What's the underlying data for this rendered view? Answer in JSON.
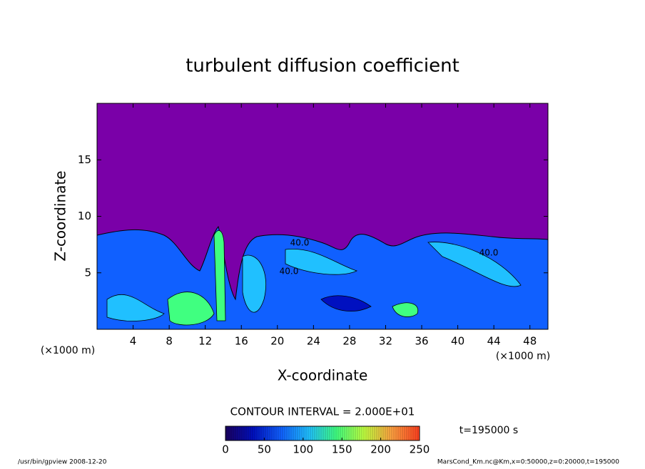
{
  "chart_data": {
    "type": "contour",
    "title": "turbulent diffusion coefficient",
    "xlabel": "X-coordinate",
    "ylabel": "Z-coordinate",
    "x_unit_left": "(×1000 m)",
    "x_unit_right": "(×1000 m)",
    "xlim": [
      0,
      50
    ],
    "xticks": [
      4,
      8,
      12,
      16,
      20,
      24,
      28,
      32,
      36,
      40,
      44,
      48
    ],
    "ylim": [
      0,
      20
    ],
    "yticks": [
      5,
      10,
      15
    ],
    "contour_labels": [
      "40.0",
      "40.0",
      "40.0"
    ],
    "contour_interval": "CONTOUR INTERVAL = 2.000E+01",
    "time_label": "t=195000 s",
    "colorbar": {
      "lim": [
        0,
        250
      ],
      "ticks": [
        0,
        50,
        100,
        150,
        200,
        250
      ],
      "colors": [
        "#1a0060",
        "#0010c0",
        "#1060ff",
        "#20c0ff",
        "#40ff80",
        "#c0ff40",
        "#ffa040",
        "#ff4020"
      ]
    },
    "background_color": "#7a00a8",
    "footer_left": "/usr/bin/gpview   2008-12-20",
    "footer_right": "MarsCond_Km.nc@Km,x=0:50000,z=0:20000,t=195000"
  }
}
